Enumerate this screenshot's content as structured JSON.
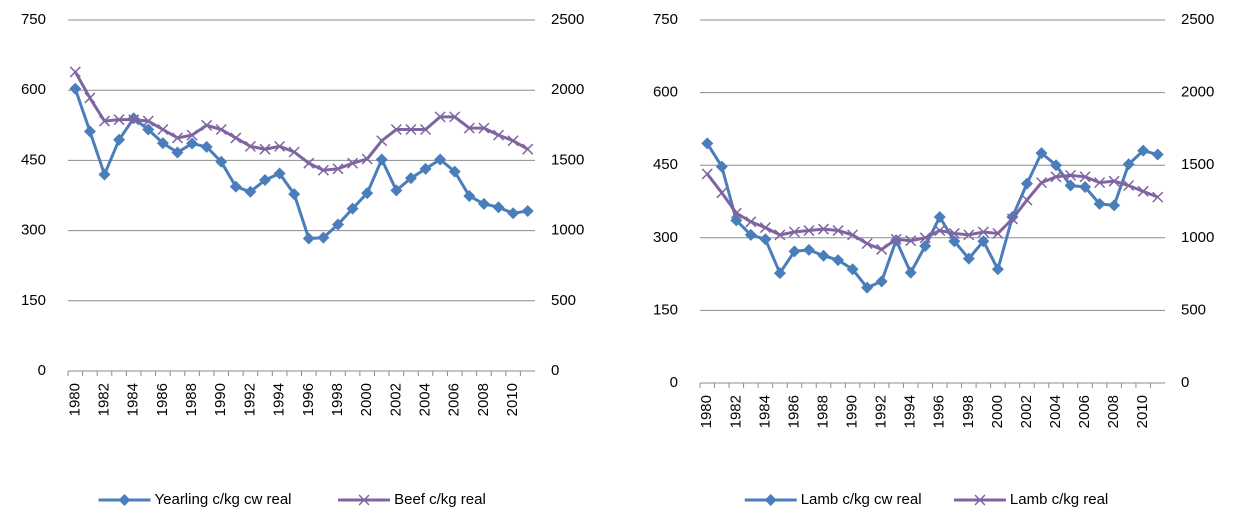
{
  "chart_data": [
    {
      "type": "line",
      "grid": true,
      "legend": "bottom",
      "categories": [
        "1980",
        null,
        "1982",
        null,
        "1984",
        null,
        "1986",
        null,
        "1988",
        null,
        "1990",
        null,
        "1992",
        null,
        "1994",
        null,
        "1996",
        null,
        "1998",
        null,
        "2000",
        null,
        "2002",
        null,
        "2004",
        null,
        "2006",
        null,
        "2008",
        null,
        "2010",
        null
      ],
      "ylim": [
        0,
        750
      ],
      "yticks": [
        0,
        150,
        300,
        450,
        600,
        750
      ],
      "y2lim": [
        0,
        2500
      ],
      "y2ticks": [
        0,
        500,
        1000,
        1500,
        2000,
        2500
      ],
      "series": [
        {
          "name": "Yearling c/kg cw real",
          "color": "#4a7ebb",
          "marker": "diamond",
          "values": [
            603,
            512,
            420,
            494,
            540,
            516,
            487,
            467,
            486,
            479,
            447,
            394,
            383,
            408,
            422,
            378,
            283,
            285,
            313,
            347,
            380,
            452,
            386,
            412,
            432,
            452,
            426,
            374,
            357,
            350,
            337,
            342
          ]
        },
        {
          "name": "Beef c/kg real",
          "color": "#8064a2",
          "marker": "x",
          "axis": "y2",
          "values": [
            2130,
            1945,
            1780,
            1790,
            1790,
            1780,
            1720,
            1660,
            1680,
            1750,
            1720,
            1660,
            1600,
            1580,
            1600,
            1560,
            1480,
            1430,
            1440,
            1480,
            1510,
            1640,
            1720,
            1720,
            1720,
            1810,
            1810,
            1730,
            1730,
            1680,
            1640,
            1580
          ]
        }
      ]
    },
    {
      "type": "line",
      "grid": true,
      "legend": "bottom",
      "categories": [
        "1980",
        null,
        "1982",
        null,
        "1984",
        null,
        "1986",
        null,
        "1988",
        null,
        "1990",
        null,
        "1992",
        null,
        "1994",
        null,
        "1996",
        null,
        "1998",
        null,
        "2000",
        null,
        "2002",
        null,
        "2004",
        null,
        "2006",
        null,
        "2008",
        null,
        "2010",
        null
      ],
      "ylim": [
        0,
        750
      ],
      "yticks": [
        0,
        150,
        300,
        450,
        600,
        750
      ],
      "y2lim": [
        0,
        2500
      ],
      "y2ticks": [
        0,
        500,
        1000,
        1500,
        2000,
        2500
      ],
      "series": [
        {
          "name": "Lamb c/kg cw real",
          "color": "#4a7ebb",
          "marker": "diamond",
          "values": [
            495,
            447,
            336,
            306,
            297,
            227,
            272,
            275,
            263,
            254,
            235,
            197,
            210,
            295,
            228,
            283,
            343,
            293,
            257,
            293,
            235,
            343,
            412,
            475,
            450,
            408,
            405,
            370,
            367,
            452,
            480,
            472
          ]
        },
        {
          "name": "Lamb c/kg real",
          "color": "#8064a2",
          "marker": "x",
          "axis": "y2",
          "values": [
            1440,
            1310,
            1170,
            1110,
            1070,
            1020,
            1040,
            1050,
            1060,
            1050,
            1020,
            960,
            920,
            990,
            980,
            1000,
            1050,
            1030,
            1020,
            1040,
            1030,
            1130,
            1260,
            1380,
            1420,
            1430,
            1420,
            1380,
            1390,
            1360,
            1320,
            1280
          ]
        }
      ]
    }
  ]
}
